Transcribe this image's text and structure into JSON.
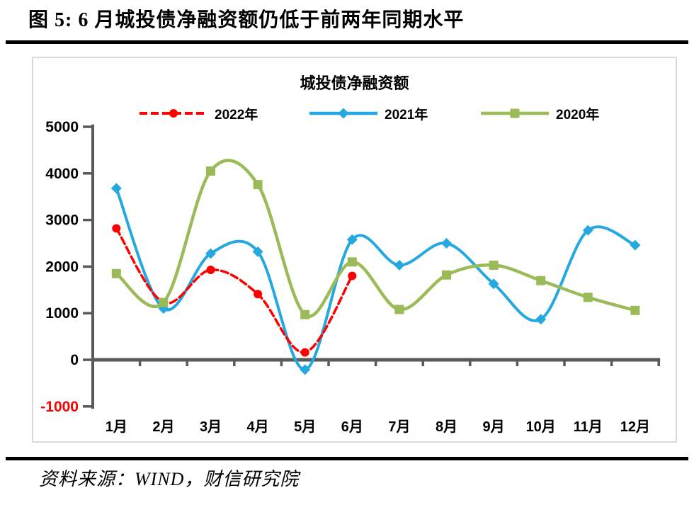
{
  "page": {
    "header_title": "图 5:  6 月城投债净融资额仍低于前两年同期水平",
    "source_note": "资料来源：WIND，财信研究院"
  },
  "chart_data": {
    "type": "line",
    "title": "城投债净融资额",
    "categories": [
      "1月",
      "2月",
      "3月",
      "4月",
      "5月",
      "6月",
      "7月",
      "8月",
      "9月",
      "10月",
      "11月",
      "12月"
    ],
    "series": [
      {
        "key": "s2022",
        "name": "2022年",
        "color": "#FF0000",
        "marker": "circle",
        "line_style": "dashed",
        "values": [
          2820,
          1230,
          1930,
          1410,
          160,
          1800
        ]
      },
      {
        "key": "s2021",
        "name": "2021年",
        "color": "#25A8E0",
        "marker": "diamond",
        "line_style": "solid",
        "values": [
          3680,
          1100,
          2280,
          2320,
          -210,
          2580,
          2030,
          2500,
          1630,
          870,
          2780,
          2460
        ]
      },
      {
        "key": "s2020",
        "name": "2020年",
        "color": "#9BBB59",
        "marker": "square",
        "line_style": "solid",
        "values": [
          1850,
          1230,
          4050,
          3760,
          970,
          2100,
          1080,
          1820,
          2030,
          1700,
          1340,
          1060
        ]
      }
    ],
    "ylim": [
      -1000,
      5000
    ],
    "ytick_interval": 1000,
    "ytick_labels": [
      "5000",
      "4000",
      "3000",
      "2000",
      "1000",
      "0",
      "-1000"
    ],
    "negative_tick_color": "#FF0000",
    "tick_label_color": "#000000",
    "axis_color": "#595959",
    "legend_position": "top",
    "grid": false,
    "smooth_lines": true
  }
}
